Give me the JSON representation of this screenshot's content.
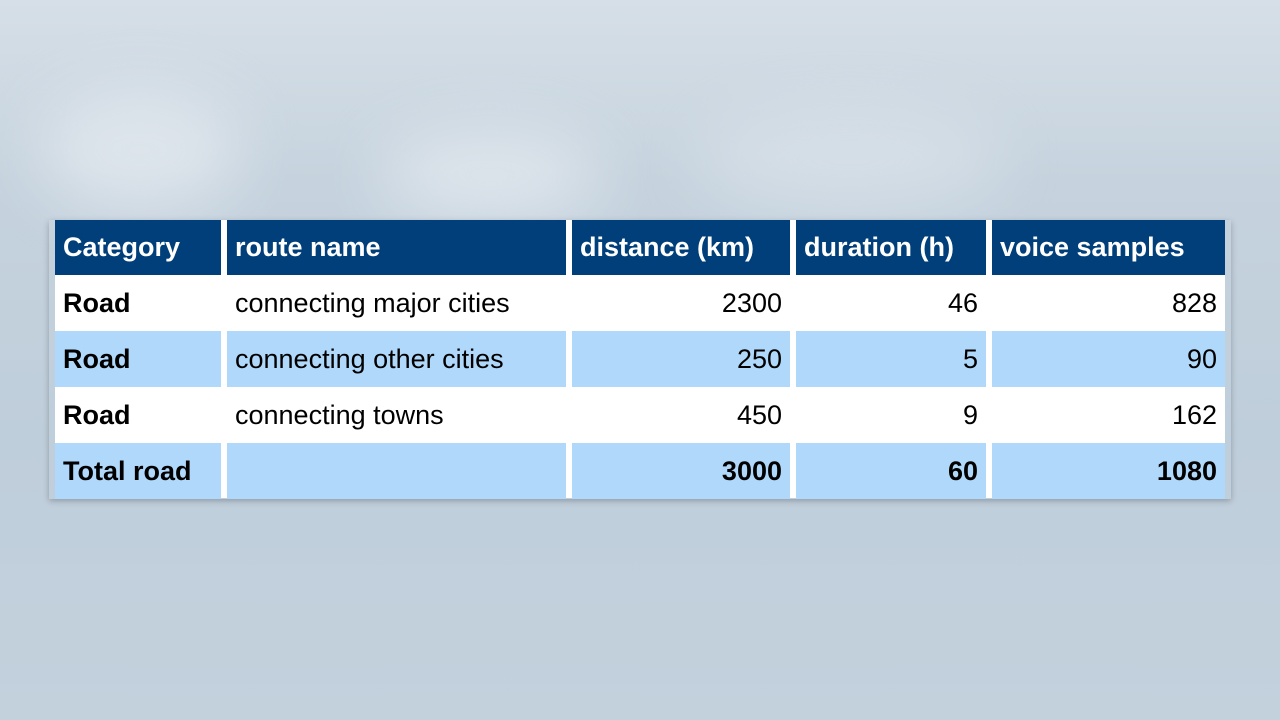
{
  "table": {
    "headers": [
      "Category",
      "route name",
      "distance (km)",
      "duration (h)",
      "voice samples"
    ],
    "rows": [
      [
        "Road",
        "connecting major cities",
        "2300",
        "46",
        "828"
      ],
      [
        "Road",
        "connecting other cities",
        "250",
        "5",
        "90"
      ],
      [
        "Road",
        "connecting towns",
        "450",
        "9",
        "162"
      ]
    ],
    "total": [
      "Total road",
      "",
      "3000",
      "60",
      "1080"
    ]
  },
  "colors": {
    "header": "#003f7a",
    "band": "#b0d8fa",
    "background": "#c3d1dd"
  }
}
